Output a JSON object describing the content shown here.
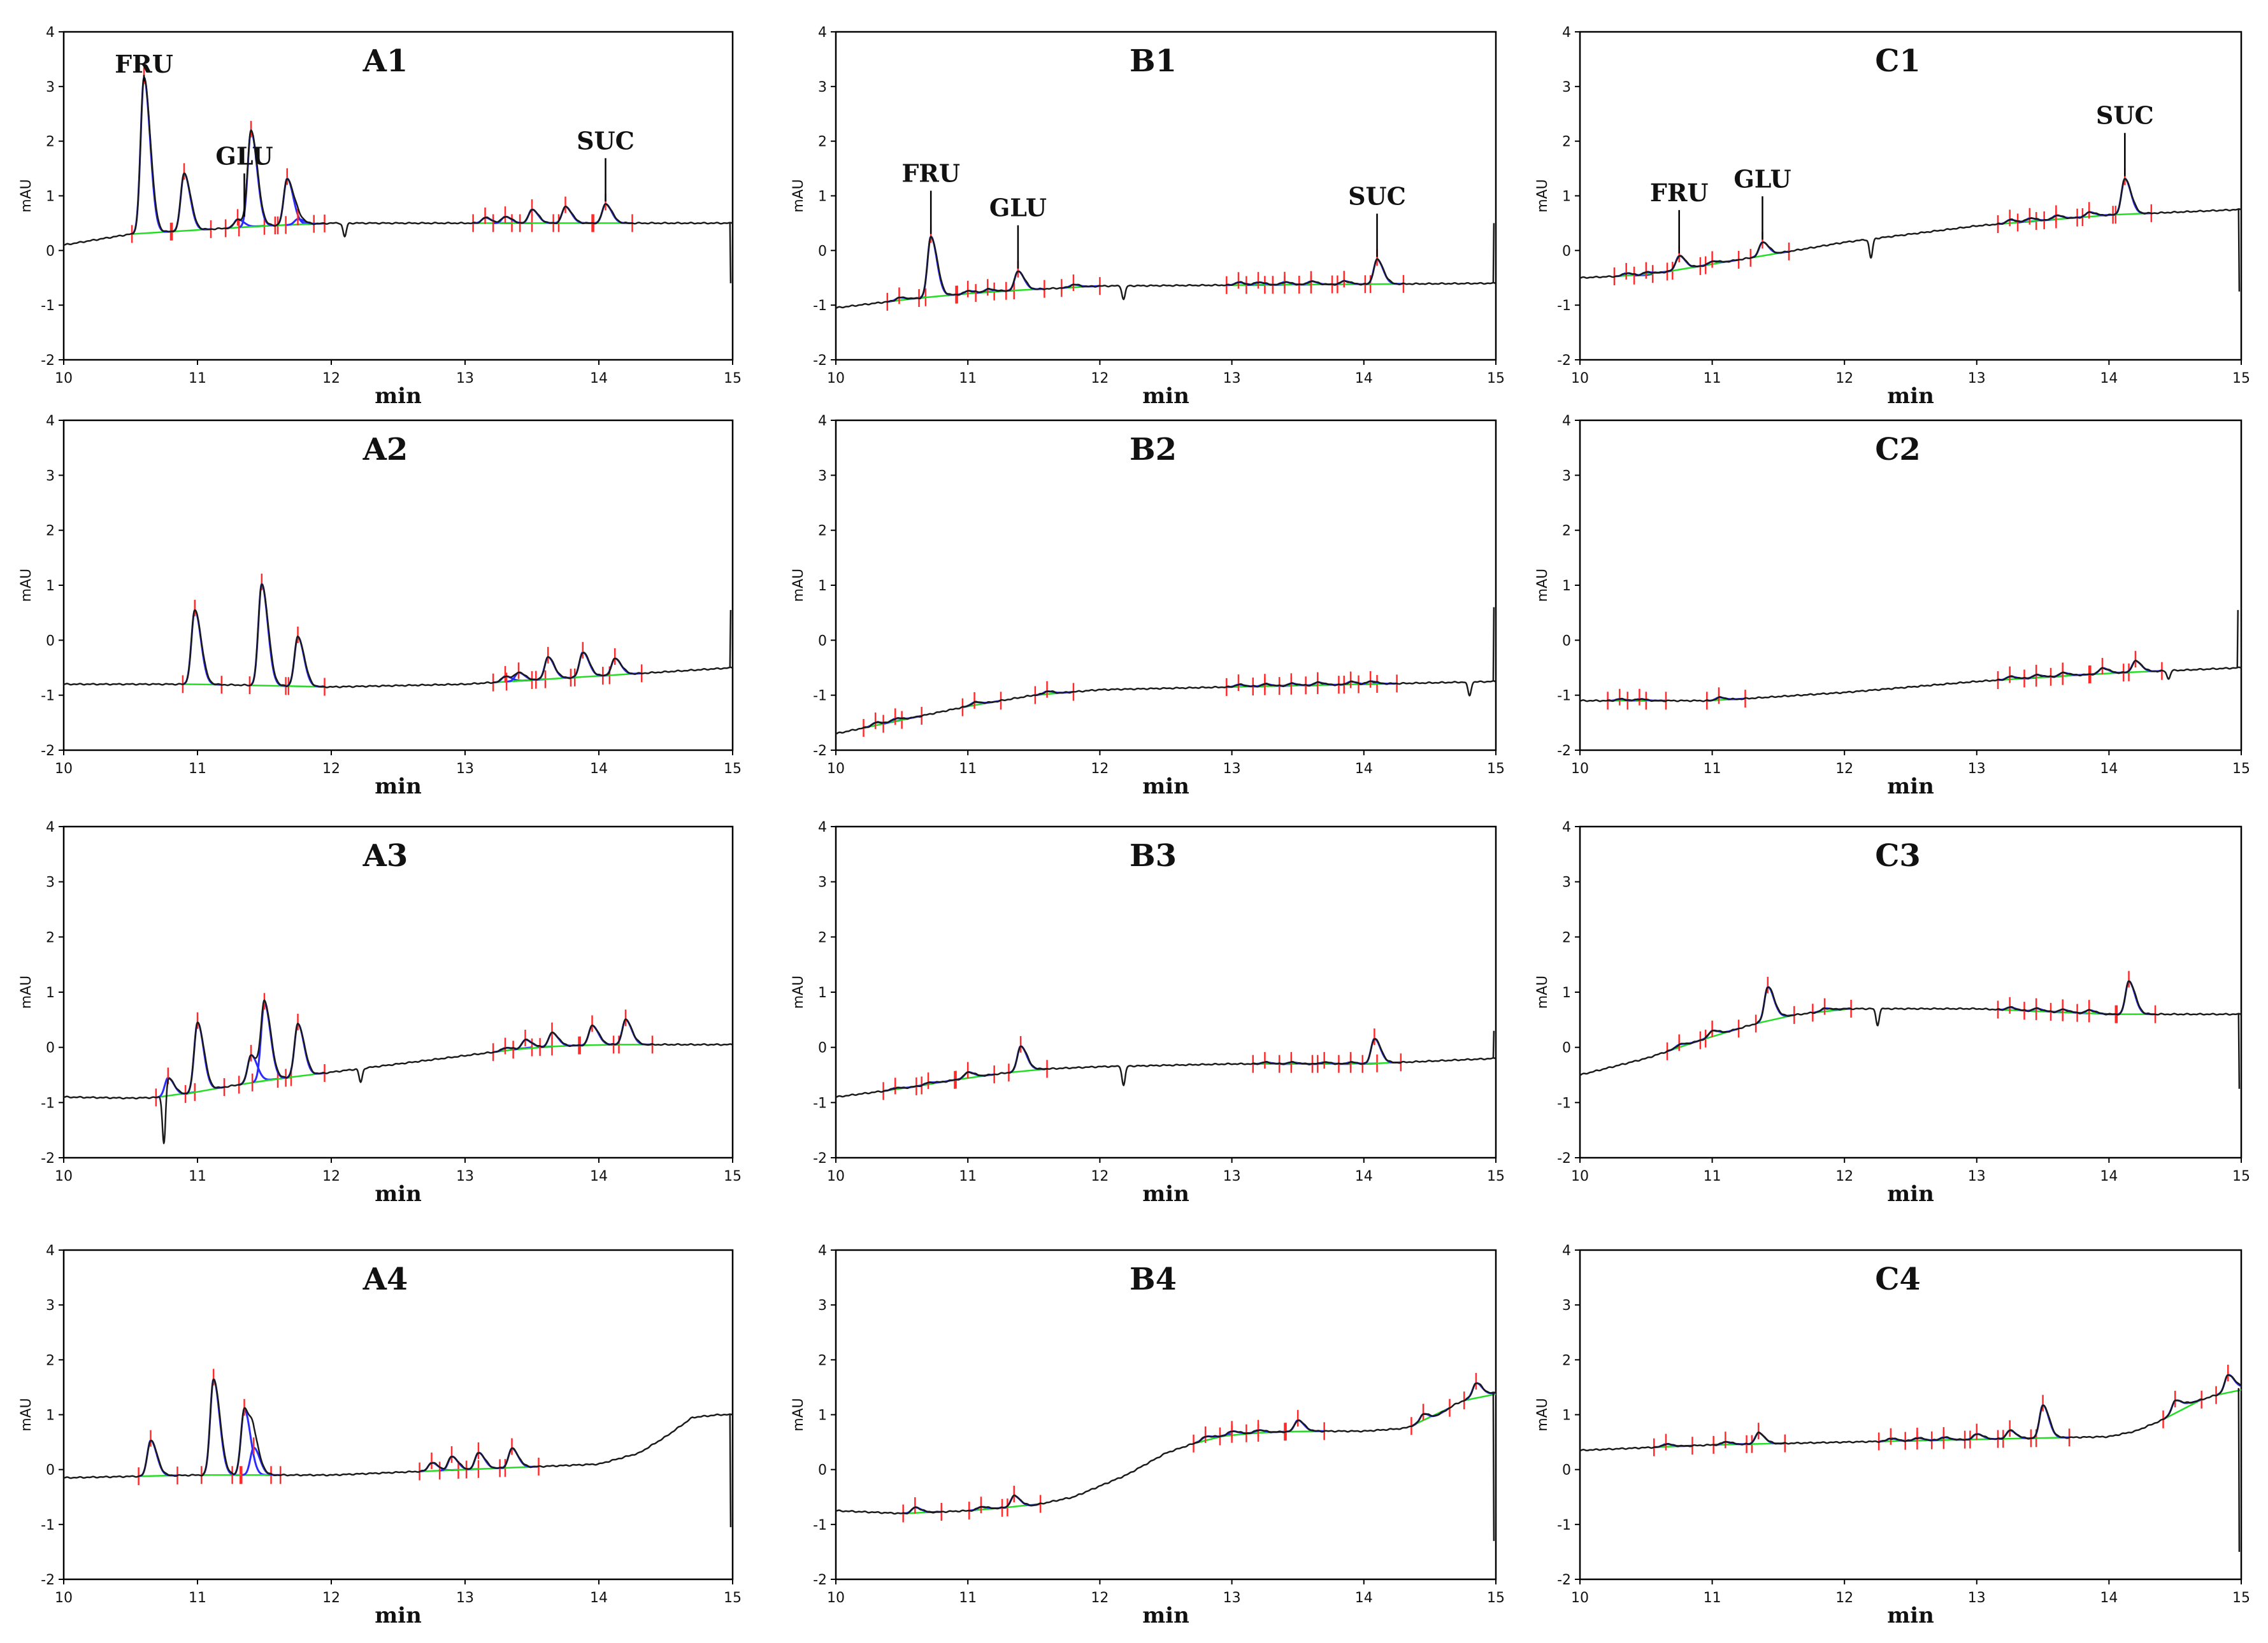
{
  "figure": {
    "xlabel": "min",
    "ylabel": "mAU",
    "x_ticks": [
      "10",
      "11",
      "12",
      "13",
      "14",
      "15"
    ],
    "y_ticks": [
      "-2",
      "-1",
      "0",
      "1",
      "2",
      "3",
      "4"
    ],
    "colors": {
      "trace": "#1a1a1a",
      "integration": "#2b2bff",
      "baseline": "#22dd22",
      "marker": "#ff2a2a",
      "frame": "#000000"
    }
  },
  "chart_data": [
    {
      "id": "A1",
      "type": "line",
      "title": "A1",
      "xlabel": "min",
      "ylabel": "mAU",
      "xlim": [
        10,
        15
      ],
      "ylim": [
        -2,
        4
      ],
      "labels": [
        {
          "text": "FRU",
          "x": 10.6
        },
        {
          "text": "GLU",
          "x": 11.35
        },
        {
          "text": "SUC",
          "x": 14.05
        }
      ],
      "baseline": [
        [
          10,
          0.1
        ],
        [
          10.5,
          0.3
        ],
        [
          11.5,
          0.45
        ],
        [
          12,
          0.5
        ],
        [
          15,
          0.5
        ]
      ],
      "peaks": [
        [
          10.6,
          2.85
        ],
        [
          10.9,
          1.05
        ],
        [
          11.3,
          0.15
        ],
        [
          11.4,
          1.75
        ],
        [
          11.67,
          0.85
        ],
        [
          11.75,
          0.1
        ],
        [
          13.15,
          0.1
        ],
        [
          13.3,
          0.12
        ],
        [
          13.5,
          0.25
        ],
        [
          13.75,
          0.3
        ],
        [
          14.05,
          0.35
        ]
      ],
      "dips": [
        [
          12.1,
          -0.25
        ]
      ],
      "end_spike": [
        14.98,
        -0.6
      ]
    },
    {
      "id": "B1",
      "type": "line",
      "title": "B1",
      "xlabel": "min",
      "ylabel": "mAU",
      "xlim": [
        10,
        15
      ],
      "ylim": [
        -2,
        4
      ],
      "labels": [
        {
          "text": "FRU",
          "x": 10.72
        },
        {
          "text": "GLU",
          "x": 11.38
        },
        {
          "text": "SUC",
          "x": 14.1
        }
      ],
      "baseline": [
        [
          10,
          -1.05
        ],
        [
          10.7,
          -0.85
        ],
        [
          11.2,
          -0.75
        ],
        [
          12,
          -0.65
        ],
        [
          15,
          -0.6
        ]
      ],
      "peaks": [
        [
          10.48,
          0.05
        ],
        [
          10.72,
          1.1
        ],
        [
          11.0,
          0.05
        ],
        [
          11.15,
          0.05
        ],
        [
          11.38,
          0.35
        ],
        [
          11.8,
          0.05
        ],
        [
          13.05,
          0.05
        ],
        [
          13.2,
          0.05
        ],
        [
          13.4,
          0.05
        ],
        [
          13.6,
          0.06
        ],
        [
          13.85,
          0.06
        ],
        [
          14.1,
          0.45
        ]
      ],
      "dips": [
        [
          12.18,
          -0.25
        ]
      ],
      "end_spike": [
        14.98,
        0.5
      ]
    },
    {
      "id": "C1",
      "type": "line",
      "title": "C1",
      "xlabel": "min",
      "ylabel": "mAU",
      "xlim": [
        10,
        15
      ],
      "ylim": [
        -2,
        4
      ],
      "labels": [
        {
          "text": "FRU",
          "x": 10.75
        },
        {
          "text": "GLU",
          "x": 11.38
        },
        {
          "text": "SUC",
          "x": 14.12
        }
      ],
      "baseline": [
        [
          10,
          -0.5
        ],
        [
          10.5,
          -0.45
        ],
        [
          11,
          -0.25
        ],
        [
          11.5,
          -0.05
        ],
        [
          12,
          0.15
        ],
        [
          13,
          0.45
        ],
        [
          14,
          0.65
        ],
        [
          15,
          0.75
        ]
      ],
      "peaks": [
        [
          10.35,
          0.05
        ],
        [
          10.5,
          0.05
        ],
        [
          10.75,
          0.25
        ],
        [
          11.0,
          0.05
        ],
        [
          11.38,
          0.25
        ],
        [
          13.25,
          0.06
        ],
        [
          13.4,
          0.06
        ],
        [
          13.6,
          0.07
        ],
        [
          13.85,
          0.08
        ],
        [
          14.12,
          0.65
        ]
      ],
      "dips": [
        [
          12.2,
          -0.35
        ]
      ],
      "end_spike": [
        14.98,
        -0.75
      ]
    },
    {
      "id": "A2",
      "type": "line",
      "title": "A2",
      "xlabel": "min",
      "ylabel": "mAU",
      "xlim": [
        10,
        15
      ],
      "ylim": [
        -2,
        4
      ],
      "labels": [],
      "baseline": [
        [
          10,
          -0.8
        ],
        [
          11,
          -0.8
        ],
        [
          12,
          -0.85
        ],
        [
          13,
          -0.8
        ],
        [
          14,
          -0.65
        ],
        [
          15,
          -0.5
        ]
      ],
      "peaks": [
        [
          10.98,
          1.35
        ],
        [
          11.48,
          1.85
        ],
        [
          11.75,
          0.9
        ],
        [
          13.3,
          0.1
        ],
        [
          13.4,
          0.15
        ],
        [
          13.62,
          0.4
        ],
        [
          13.88,
          0.45
        ],
        [
          14.12,
          0.3
        ]
      ],
      "dips": [],
      "end_spike": [
        14.98,
        0.55
      ]
    },
    {
      "id": "B2",
      "type": "line",
      "title": "B2",
      "xlabel": "min",
      "ylabel": "mAU",
      "xlim": [
        10,
        15
      ],
      "ylim": [
        -2,
        4
      ],
      "labels": [],
      "baseline": [
        [
          10,
          -1.7
        ],
        [
          10.5,
          -1.45
        ],
        [
          11,
          -1.2
        ],
        [
          11.5,
          -1.0
        ],
        [
          12,
          -0.9
        ],
        [
          13,
          -0.85
        ],
        [
          14,
          -0.8
        ],
        [
          15,
          -0.75
        ]
      ],
      "peaks": [
        [
          10.3,
          0.05
        ],
        [
          10.45,
          0.05
        ],
        [
          11.05,
          0.05
        ],
        [
          11.6,
          0.05
        ],
        [
          13.05,
          0.04
        ],
        [
          13.25,
          0.04
        ],
        [
          13.45,
          0.04
        ],
        [
          13.65,
          0.05
        ],
        [
          13.9,
          0.05
        ],
        [
          14.05,
          0.05
        ]
      ],
      "dips": [
        [
          14.8,
          -0.25
        ]
      ],
      "end_spike": [
        14.98,
        0.6
      ]
    },
    {
      "id": "C2",
      "type": "line",
      "title": "C2",
      "xlabel": "min",
      "ylabel": "mAU",
      "xlim": [
        10,
        15
      ],
      "ylim": [
        -2,
        4
      ],
      "labels": [],
      "baseline": [
        [
          10,
          -1.1
        ],
        [
          11,
          -1.1
        ],
        [
          12,
          -0.95
        ],
        [
          13,
          -0.75
        ],
        [
          14,
          -0.6
        ],
        [
          15,
          -0.5
        ]
      ],
      "peaks": [
        [
          10.3,
          0.03
        ],
        [
          10.45,
          0.03
        ],
        [
          11.05,
          0.05
        ],
        [
          13.25,
          0.05
        ],
        [
          13.45,
          0.05
        ],
        [
          13.65,
          0.06
        ],
        [
          13.95,
          0.1
        ],
        [
          14.2,
          0.2
        ]
      ],
      "dips": [
        [
          14.45,
          -0.15
        ]
      ],
      "end_spike": [
        14.97,
        0.55
      ]
    },
    {
      "id": "A3",
      "type": "line",
      "title": "A3",
      "xlabel": "min",
      "ylabel": "mAU",
      "xlim": [
        10,
        15
      ],
      "ylim": [
        -2,
        4
      ],
      "labels": [],
      "baseline": [
        [
          10,
          -0.9
        ],
        [
          10.5,
          -0.92
        ],
        [
          10.8,
          -0.9
        ],
        [
          11,
          -0.8
        ],
        [
          11.5,
          -0.6
        ],
        [
          12,
          -0.45
        ],
        [
          12.5,
          -0.3
        ],
        [
          13,
          -0.15
        ],
        [
          13.5,
          0.0
        ],
        [
          14,
          0.05
        ],
        [
          15,
          0.05
        ]
      ],
      "peaks": [
        [
          10.78,
          0.35
        ],
        [
          11.0,
          1.25
        ],
        [
          11.4,
          0.5
        ],
        [
          11.5,
          1.4
        ],
        [
          11.75,
          0.95
        ],
        [
          13.3,
          0.05
        ],
        [
          13.45,
          0.15
        ],
        [
          13.65,
          0.25
        ],
        [
          13.95,
          0.35
        ],
        [
          14.2,
          0.45
        ]
      ],
      "dips": [
        [
          10.75,
          -1.0
        ],
        [
          12.22,
          -0.25
        ]
      ],
      "end_spike": null
    },
    {
      "id": "B3",
      "type": "line",
      "title": "B3",
      "xlabel": "min",
      "ylabel": "mAU",
      "xlim": [
        10,
        15
      ],
      "ylim": [
        -2,
        4
      ],
      "labels": [],
      "baseline": [
        [
          10,
          -0.9
        ],
        [
          10.5,
          -0.75
        ],
        [
          11,
          -0.55
        ],
        [
          11.5,
          -0.4
        ],
        [
          12,
          -0.35
        ],
        [
          13,
          -0.3
        ],
        [
          14,
          -0.3
        ],
        [
          15,
          -0.2
        ]
      ],
      "peaks": [
        [
          10.45,
          0.03
        ],
        [
          10.7,
          0.03
        ],
        [
          11.0,
          0.1
        ],
        [
          11.4,
          0.45
        ],
        [
          13.25,
          0.03
        ],
        [
          13.45,
          0.03
        ],
        [
          13.7,
          0.03
        ],
        [
          13.9,
          0.03
        ],
        [
          14.08,
          0.45
        ]
      ],
      "dips": [
        [
          12.18,
          -0.35
        ]
      ],
      "end_spike": [
        14.98,
        0.3
      ]
    },
    {
      "id": "C3",
      "type": "line",
      "title": "C3",
      "xlabel": "min",
      "ylabel": "mAU",
      "xlim": [
        10,
        15
      ],
      "ylim": [
        -2,
        4
      ],
      "labels": [],
      "baseline": [
        [
          10,
          -0.5
        ],
        [
          10.5,
          -0.2
        ],
        [
          11,
          0.2
        ],
        [
          11.5,
          0.55
        ],
        [
          12,
          0.7
        ],
        [
          13,
          0.7
        ],
        [
          14,
          0.6
        ],
        [
          15,
          0.6
        ]
      ],
      "peaks": [
        [
          10.75,
          0.05
        ],
        [
          11.0,
          0.1
        ],
        [
          11.42,
          0.6
        ],
        [
          11.85,
          0.05
        ],
        [
          13.25,
          0.05
        ],
        [
          13.45,
          0.05
        ],
        [
          13.65,
          0.05
        ],
        [
          13.85,
          0.06
        ],
        [
          14.15,
          0.6
        ]
      ],
      "dips": [
        [
          12.25,
          -0.3
        ]
      ],
      "end_spike": [
        14.98,
        -0.75
      ]
    },
    {
      "id": "A4",
      "type": "line",
      "title": "A4",
      "xlabel": "min",
      "ylabel": "mAU",
      "xlim": [
        10,
        15
      ],
      "ylim": [
        -2,
        4
      ],
      "labels": [],
      "baseline": [
        [
          10,
          -0.15
        ],
        [
          11,
          -0.1
        ],
        [
          12,
          -0.1
        ],
        [
          13,
          0.0
        ],
        [
          13.5,
          0.05
        ],
        [
          14,
          0.1
        ],
        [
          14.3,
          0.3
        ],
        [
          14.5,
          0.6
        ],
        [
          14.7,
          0.95
        ],
        [
          14.9,
          1.0
        ],
        [
          15,
          1.0
        ]
      ],
      "peaks": [
        [
          10.65,
          0.65
        ],
        [
          11.12,
          1.75
        ],
        [
          11.35,
          1.2
        ],
        [
          11.42,
          0.5
        ],
        [
          12.75,
          0.15
        ],
        [
          12.9,
          0.25
        ],
        [
          13.1,
          0.3
        ],
        [
          13.35,
          0.35
        ]
      ],
      "dips": [],
      "end_spike": [
        14.98,
        -1.05
      ]
    },
    {
      "id": "B4",
      "type": "line",
      "title": "B4",
      "xlabel": "min",
      "ylabel": "mAU",
      "xlim": [
        10,
        15
      ],
      "ylim": [
        -2,
        4
      ],
      "labels": [],
      "baseline": [
        [
          10,
          -0.75
        ],
        [
          10.5,
          -0.8
        ],
        [
          11,
          -0.75
        ],
        [
          11.5,
          -0.65
        ],
        [
          11.8,
          -0.5
        ],
        [
          12.2,
          -0.1
        ],
        [
          12.5,
          0.3
        ],
        [
          12.8,
          0.55
        ],
        [
          13,
          0.65
        ],
        [
          13.5,
          0.7
        ],
        [
          14,
          0.7
        ],
        [
          14.3,
          0.75
        ],
        [
          14.5,
          0.9
        ],
        [
          14.7,
          1.2
        ],
        [
          14.8,
          1.3
        ],
        [
          15,
          1.4
        ]
      ],
      "peaks": [
        [
          10.6,
          0.1
        ],
        [
          11.1,
          0.05
        ],
        [
          11.35,
          0.2
        ],
        [
          12.8,
          0.05
        ],
        [
          13.0,
          0.05
        ],
        [
          13.2,
          0.05
        ],
        [
          13.5,
          0.2
        ],
        [
          14.45,
          0.15
        ],
        [
          14.85,
          0.25
        ]
      ],
      "dips": [],
      "end_spike": [
        14.98,
        -1.3
      ]
    },
    {
      "id": "C4",
      "type": "line",
      "title": "C4",
      "xlabel": "min",
      "ylabel": "mAU",
      "xlim": [
        10,
        15
      ],
      "ylim": [
        -2,
        4
      ],
      "labels": [],
      "baseline": [
        [
          10,
          0.35
        ],
        [
          11,
          0.45
        ],
        [
          12,
          0.5
        ],
        [
          13,
          0.55
        ],
        [
          14,
          0.6
        ],
        [
          14.2,
          0.7
        ],
        [
          14.4,
          0.9
        ],
        [
          14.6,
          1.2
        ],
        [
          14.8,
          1.35
        ],
        [
          15,
          1.5
        ]
      ],
      "peaks": [
        [
          10.65,
          0.05
        ],
        [
          11.1,
          0.05
        ],
        [
          11.35,
          0.2
        ],
        [
          12.35,
          0.05
        ],
        [
          12.55,
          0.05
        ],
        [
          12.75,
          0.05
        ],
        [
          13.0,
          0.1
        ],
        [
          13.25,
          0.15
        ],
        [
          13.5,
          0.6
        ],
        [
          14.5,
          0.2
        ],
        [
          14.9,
          0.3
        ]
      ],
      "dips": [],
      "end_spike": [
        14.98,
        -1.5
      ]
    }
  ]
}
